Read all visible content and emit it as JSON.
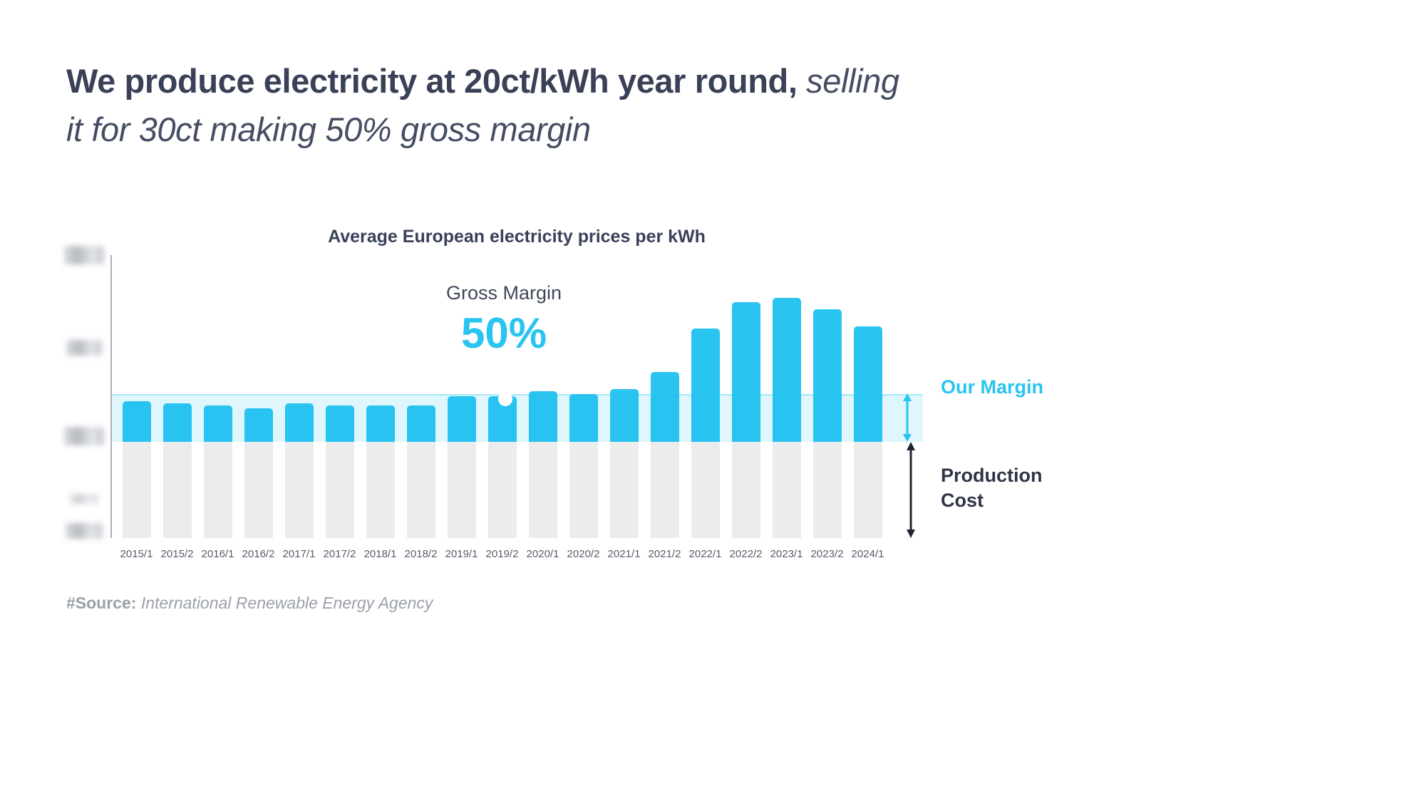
{
  "headline": {
    "bold": "We produce electricity at 20ct/kWh year round,",
    "italic_inline": " selling",
    "italic_line2": "it for 30ct making 50% gross margin"
  },
  "chart": {
    "title": "Average European electricity prices per kWh",
    "gross_margin_label": "Gross Margin",
    "gross_margin_value": "50%",
    "our_margin_label": "Our Margin",
    "production_cost_label": "Production Cost"
  },
  "source": {
    "prefix": "#Source:",
    "text": " International Renewable Energy Agency"
  },
  "colors": {
    "accent_blue": "#29C4F0",
    "bar_gray": "#ECECEC",
    "band_fill": "rgba(41,196,240,0.15)",
    "dark_text": "#3A4157",
    "arrow_black": "#1E2430"
  },
  "chart_data": {
    "type": "bar",
    "stacked": true,
    "title": "Average European electricity prices per kWh",
    "unit": "ct/kWh",
    "categories": [
      "2015/1",
      "2015/2",
      "2016/1",
      "2016/2",
      "2017/1",
      "2017/2",
      "2018/1",
      "2018/2",
      "2019/1",
      "2019/2",
      "2020/1",
      "2020/2",
      "2021/1",
      "2021/2",
      "2022/1",
      "2022/2",
      "2023/1",
      "2023/2",
      "2024/1"
    ],
    "series": [
      {
        "name": "Production Cost",
        "color": "#ECECEC",
        "values": [
          20,
          20,
          20,
          20,
          20,
          20,
          20,
          20,
          20,
          20,
          20,
          20,
          20,
          20,
          20,
          20,
          20,
          20,
          20
        ]
      },
      {
        "name": "Margin above production cost",
        "color": "#29C4F0",
        "values": [
          8.5,
          8,
          7.5,
          7,
          8,
          7.5,
          7.5,
          7.5,
          9.5,
          9.5,
          10.5,
          10,
          11,
          14.5,
          23.5,
          29,
          30,
          27.5,
          24
        ]
      }
    ],
    "total_price_ct": [
      28.5,
      28,
      27.5,
      27,
      28,
      27.5,
      27.5,
      27.5,
      29.5,
      29.5,
      30.5,
      30,
      31,
      34.5,
      43.5,
      49,
      50,
      47.5,
      44
    ],
    "band": {
      "from_ct": 20,
      "to_ct": 30,
      "meaning": "Our Margin (sell price 30ct vs production cost 20ct)"
    },
    "annotations": [
      {
        "label": "Gross Margin",
        "value": "50%",
        "at_category": "2019/2"
      }
    ],
    "ylim": [
      0,
      58
    ],
    "y_axis_labels": "redacted/blurred in source image",
    "legend_position": "right",
    "grid": false
  }
}
